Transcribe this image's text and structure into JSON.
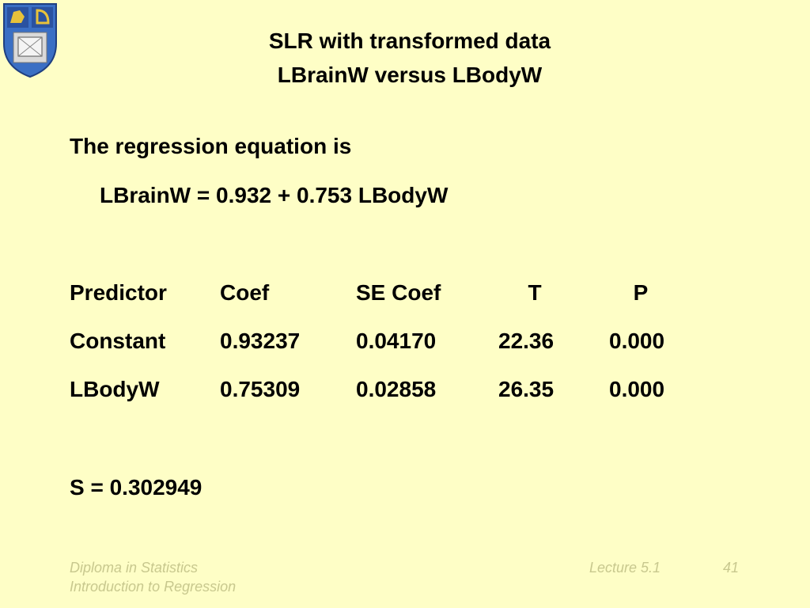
{
  "header": {
    "title_lines": [
      "SLR with transformed data",
      "LBrainW versus LBodyW"
    ]
  },
  "body": {
    "intro": "The regression equation is",
    "equation": "LBrainW = 0.932 + 0.753 LBodyW",
    "table": {
      "header": [
        "Predictor",
        "Coef",
        "SE Coef",
        "T",
        "P"
      ],
      "rows": [
        [
          "Constant",
          "0.93237",
          "0.04170",
          "22.36",
          "0.000"
        ],
        [
          "LBodyW",
          "0.75309",
          "0.02858",
          "26.35",
          "0.000"
        ]
      ]
    },
    "summary": "S = 0.302949"
  },
  "footer": {
    "left": [
      "Diploma in Statistics",
      "Introduction to Regression"
    ],
    "lecture": "Lecture 5.1",
    "page": "41"
  }
}
